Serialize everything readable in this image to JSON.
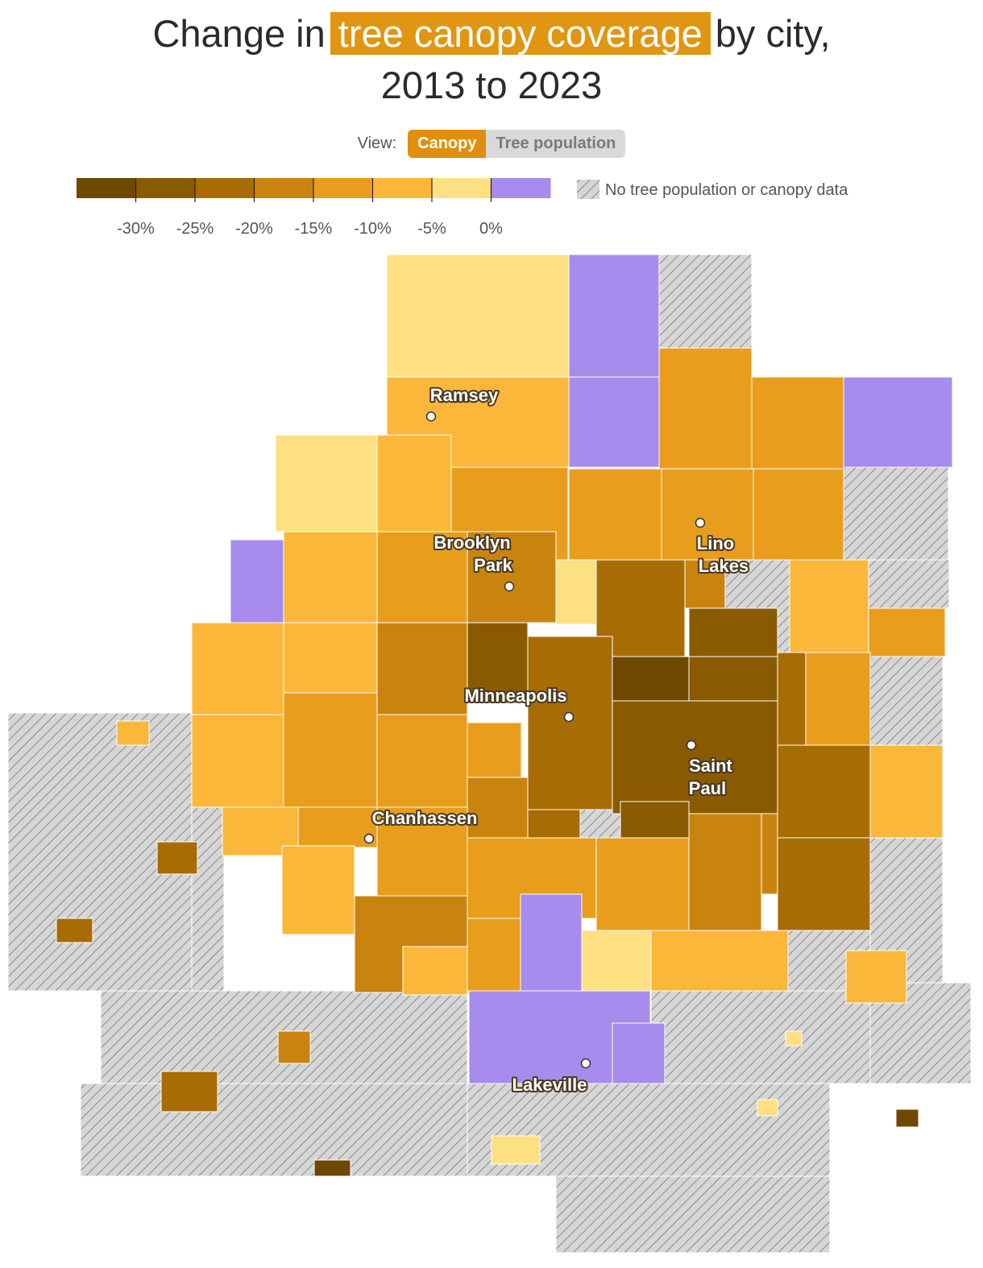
{
  "title": {
    "before": "Change in",
    "highlight": "tree canopy coverage",
    "after": "by city,",
    "line2": "2013 to 2023"
  },
  "view": {
    "label": "View:",
    "options": [
      "Canopy",
      "Tree population"
    ]
  },
  "legend": {
    "colors": [
      "#6e4700",
      "#8a5a00",
      "#a86c05",
      "#c98410",
      "#e89d1c",
      "#fbb73a",
      "#fde081",
      "#a78bed"
    ],
    "ticks": [
      {
        "value": -30,
        "label": "-30%"
      },
      {
        "value": -25,
        "label": "-25%"
      },
      {
        "value": -20,
        "label": "-20%"
      },
      {
        "value": -15,
        "label": "-15%"
      },
      {
        "value": -10,
        "label": "-10%"
      },
      {
        "value": -5,
        "label": "-5%"
      },
      {
        "value": 0,
        "label": "0%"
      }
    ],
    "no_data": "No tree population or canopy data"
  },
  "cities": [
    {
      "lines": [
        "Ramsey"
      ]
    },
    {
      "lines": [
        "Brooklyn",
        "Park"
      ]
    },
    {
      "lines": [
        "Lino",
        "Lakes"
      ]
    },
    {
      "lines": [
        "Minneapolis"
      ]
    },
    {
      "lines": [
        "Saint",
        "Paul"
      ]
    },
    {
      "lines": [
        "Chanhassen"
      ]
    },
    {
      "lines": [
        "Lakeville"
      ]
    }
  ]
}
